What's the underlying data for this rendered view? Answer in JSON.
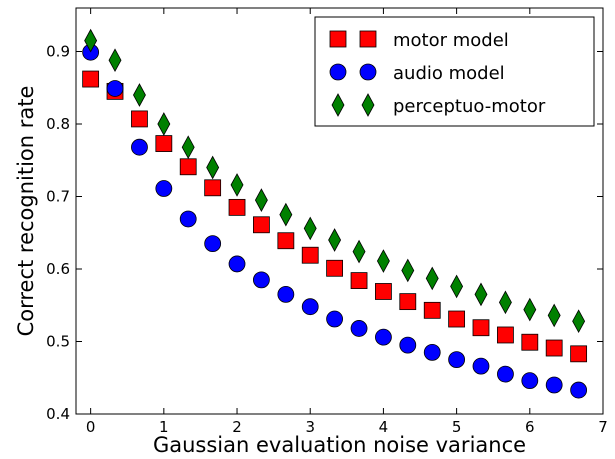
{
  "chart_data": {
    "type": "scatter",
    "xlabel": "Gaussian evaluation noise variance",
    "ylabel": "Correct recognition rate",
    "xlim": [
      -0.2,
      7
    ],
    "ylim": [
      0.4,
      0.96
    ],
    "xticks": [
      "0",
      "1",
      "2",
      "3",
      "4",
      "5",
      "6",
      "7"
    ],
    "yticks": [
      "0.4",
      "0.5",
      "0.6",
      "0.7",
      "0.8",
      "0.9"
    ],
    "grid": false,
    "legend_position": "top-right",
    "series": [
      {
        "name": "motor model",
        "marker": "square",
        "color": "#ff0000",
        "x": [
          0,
          0.333,
          0.667,
          1.0,
          1.333,
          1.667,
          2.0,
          2.333,
          2.667,
          3.0,
          3.333,
          3.667,
          4.0,
          4.333,
          4.667,
          5.0,
          5.333,
          5.667,
          6.0,
          6.333,
          6.667
        ],
        "y": [
          0.862,
          0.845,
          0.807,
          0.773,
          0.741,
          0.712,
          0.685,
          0.661,
          0.639,
          0.619,
          0.601,
          0.584,
          0.569,
          0.555,
          0.543,
          0.531,
          0.519,
          0.509,
          0.499,
          0.491,
          0.483
        ]
      },
      {
        "name": "audio model",
        "marker": "circle",
        "color": "#0000ff",
        "x": [
          0,
          0.333,
          0.667,
          1.0,
          1.333,
          1.667,
          2.0,
          2.333,
          2.667,
          3.0,
          3.333,
          3.667,
          4.0,
          4.333,
          4.667,
          5.0,
          5.333,
          5.667,
          6.0,
          6.333,
          6.667
        ],
        "y": [
          0.899,
          0.849,
          0.768,
          0.711,
          0.669,
          0.635,
          0.607,
          0.585,
          0.565,
          0.548,
          0.531,
          0.518,
          0.506,
          0.495,
          0.485,
          0.475,
          0.466,
          0.455,
          0.446,
          0.44,
          0.433
        ]
      },
      {
        "name": "perceptuo-motor",
        "marker": "diamond",
        "color": "#008000",
        "x": [
          0,
          0.333,
          0.667,
          1.0,
          1.333,
          1.667,
          2.0,
          2.333,
          2.667,
          3.0,
          3.333,
          3.667,
          4.0,
          4.333,
          4.667,
          5.0,
          5.333,
          5.667,
          6.0,
          6.333,
          6.667
        ],
        "y": [
          0.915,
          0.888,
          0.84,
          0.8,
          0.768,
          0.74,
          0.716,
          0.695,
          0.675,
          0.656,
          0.64,
          0.624,
          0.611,
          0.598,
          0.587,
          0.576,
          0.565,
          0.554,
          0.544,
          0.536,
          0.528
        ]
      }
    ]
  }
}
